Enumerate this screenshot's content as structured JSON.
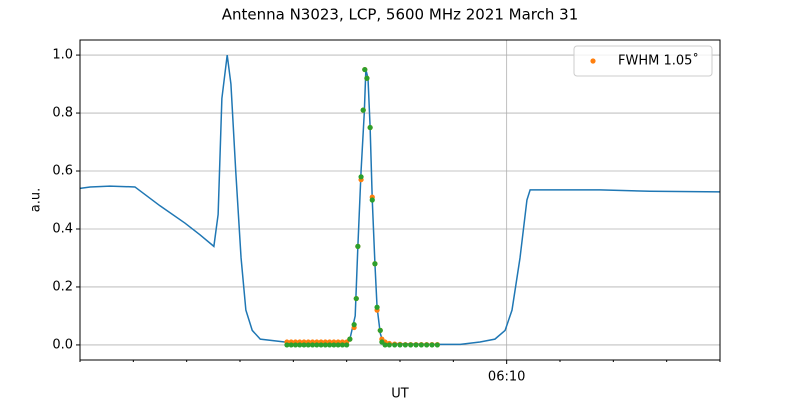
{
  "chart_data": {
    "type": "line",
    "title": "Antenna N3023, LCP, 5600 MHz 2021 March 31",
    "x_label": "UT",
    "y_label": "a.u.",
    "xlim": [
      2,
      14
    ],
    "ylim": [
      -0.052,
      1.052
    ],
    "xticks": [
      {
        "value": 10,
        "label": "06:10"
      }
    ],
    "xminorticks": [
      2,
      3,
      4,
      5,
      6,
      7,
      8,
      9,
      11,
      12,
      13,
      14
    ],
    "yticks": [
      {
        "value": 0,
        "label": "0.0"
      },
      {
        "value": 0.2,
        "label": "0.2"
      },
      {
        "value": 0.4,
        "label": "0.4"
      },
      {
        "value": 0.6,
        "label": "0.6"
      },
      {
        "value": 0.8,
        "label": "0.8"
      },
      {
        "value": 1,
        "label": "1.0"
      }
    ],
    "grid": true,
    "legend_position": "upper right",
    "series": [
      {
        "kind": "line",
        "color": "#1f77b4",
        "x": [
          2.0,
          2.19,
          2.56,
          3.03,
          3.5,
          3.97,
          4.25,
          4.51,
          4.59,
          4.66,
          4.76,
          4.83,
          4.92,
          5.02,
          5.11,
          5.23,
          5.38,
          5.84,
          5.94,
          6.97,
          7.06,
          7.16,
          7.21,
          7.27,
          7.33,
          7.36,
          7.4,
          7.44,
          7.48,
          7.53,
          7.57,
          7.63,
          7.68,
          7.81,
          8.75,
          9.13,
          9.5,
          9.78,
          9.97,
          10.1,
          10.25,
          10.38,
          10.44,
          11.0,
          11.75,
          12.69,
          14.0
        ],
        "values": [
          0.54,
          0.545,
          0.548,
          0.545,
          0.48,
          0.42,
          0.38,
          0.34,
          0.45,
          0.85,
          1.0,
          0.9,
          0.6,
          0.3,
          0.12,
          0.05,
          0.02,
          0.01,
          0.005,
          0.005,
          0.02,
          0.1,
          0.34,
          0.6,
          0.8,
          0.95,
          0.92,
          0.75,
          0.5,
          0.28,
          0.13,
          0.04,
          0.01,
          0.005,
          0.002,
          0.002,
          0.01,
          0.02,
          0.05,
          0.12,
          0.3,
          0.5,
          0.535,
          0.535,
          0.535,
          0.53,
          0.528
        ]
      },
      {
        "kind": "scatter",
        "name": "FWHM 1.05˚",
        "color": "#ff7f0e",
        "x": [
          5.88,
          5.96,
          6.04,
          6.12,
          6.2,
          6.28,
          6.36,
          6.44,
          6.52,
          6.6,
          6.68,
          6.76,
          6.84,
          6.92,
          7.0,
          7.06,
          7.14,
          7.18,
          7.21,
          7.27,
          7.31,
          7.34,
          7.38,
          7.44,
          7.48,
          7.53,
          7.57,
          7.63,
          7.66,
          7.72,
          7.8,
          7.9,
          8.0,
          8.1,
          8.2,
          8.3,
          8.4,
          8.5,
          8.6,
          8.7
        ],
        "values": [
          0.01,
          0.01,
          0.01,
          0.01,
          0.01,
          0.01,
          0.01,
          0.01,
          0.01,
          0.01,
          0.01,
          0.01,
          0.01,
          0.01,
          0.01,
          0.02,
          0.06,
          0.16,
          0.34,
          0.57,
          0.81,
          0.95,
          0.92,
          0.75,
          0.51,
          0.28,
          0.12,
          0.05,
          0.02,
          0.01,
          0.005,
          0.003,
          0.002,
          0.001,
          0.001,
          0.001,
          0.001,
          0.001,
          0.001,
          0.001
        ]
      },
      {
        "kind": "scatter",
        "color": "#2ca02c",
        "x": [
          5.88,
          5.96,
          6.04,
          6.12,
          6.2,
          6.28,
          6.36,
          6.44,
          6.52,
          6.6,
          6.68,
          6.76,
          6.84,
          6.92,
          7.0,
          7.06,
          7.14,
          7.18,
          7.21,
          7.27,
          7.31,
          7.34,
          7.38,
          7.44,
          7.48,
          7.53,
          7.57,
          7.63,
          7.66,
          7.72,
          7.8,
          7.9,
          8.0,
          8.1,
          8.2,
          8.3,
          8.4,
          8.5,
          8.6,
          8.7
        ],
        "values": [
          0,
          0,
          0,
          0,
          0,
          0,
          0,
          0,
          0,
          0,
          0,
          0,
          0,
          0,
          0,
          0.02,
          0.07,
          0.16,
          0.34,
          0.58,
          0.81,
          0.95,
          0.92,
          0.75,
          0.5,
          0.28,
          0.13,
          0.05,
          0.01,
          0,
          0,
          0,
          0,
          0,
          0,
          0,
          0,
          0,
          0,
          0
        ]
      }
    ]
  }
}
